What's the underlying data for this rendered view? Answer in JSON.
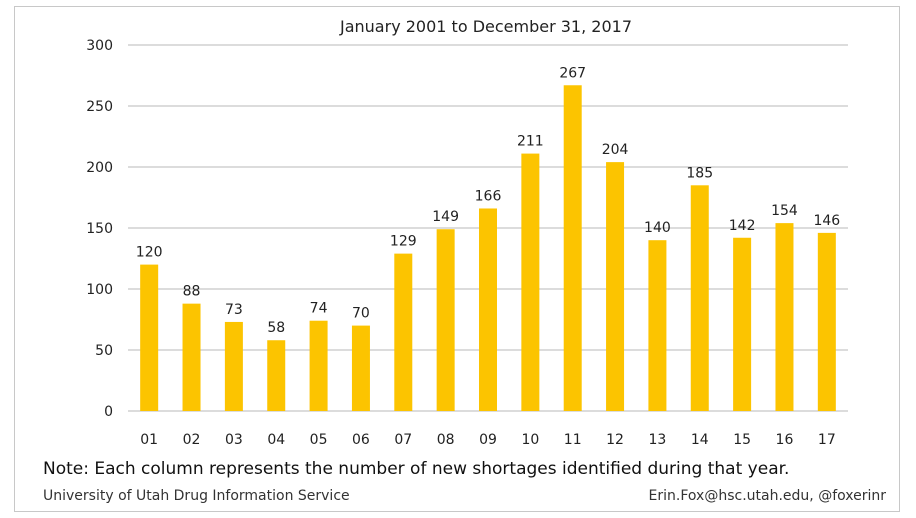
{
  "chart_data": {
    "type": "bar",
    "title": "January 2001 to December 31, 2017",
    "categories": [
      "01",
      "02",
      "03",
      "04",
      "05",
      "06",
      "07",
      "08",
      "09",
      "10",
      "11",
      "12",
      "13",
      "14",
      "15",
      "16",
      "17"
    ],
    "values": [
      120,
      88,
      73,
      58,
      74,
      70,
      129,
      149,
      166,
      211,
      267,
      204,
      140,
      185,
      142,
      154,
      146
    ],
    "ylim": [
      0,
      300
    ],
    "yticks": [
      0,
      50,
      100,
      150,
      200,
      250,
      300
    ],
    "grid": true,
    "bar_color": "#fcc400",
    "xlabel": "",
    "ylabel": ""
  },
  "footer": {
    "note": "Note: Each column represents the number of new shortages identified during that year.",
    "source": "University of Utah Drug Information Service",
    "contact": "Erin.Fox@hsc.utah.edu, @foxerinr"
  }
}
